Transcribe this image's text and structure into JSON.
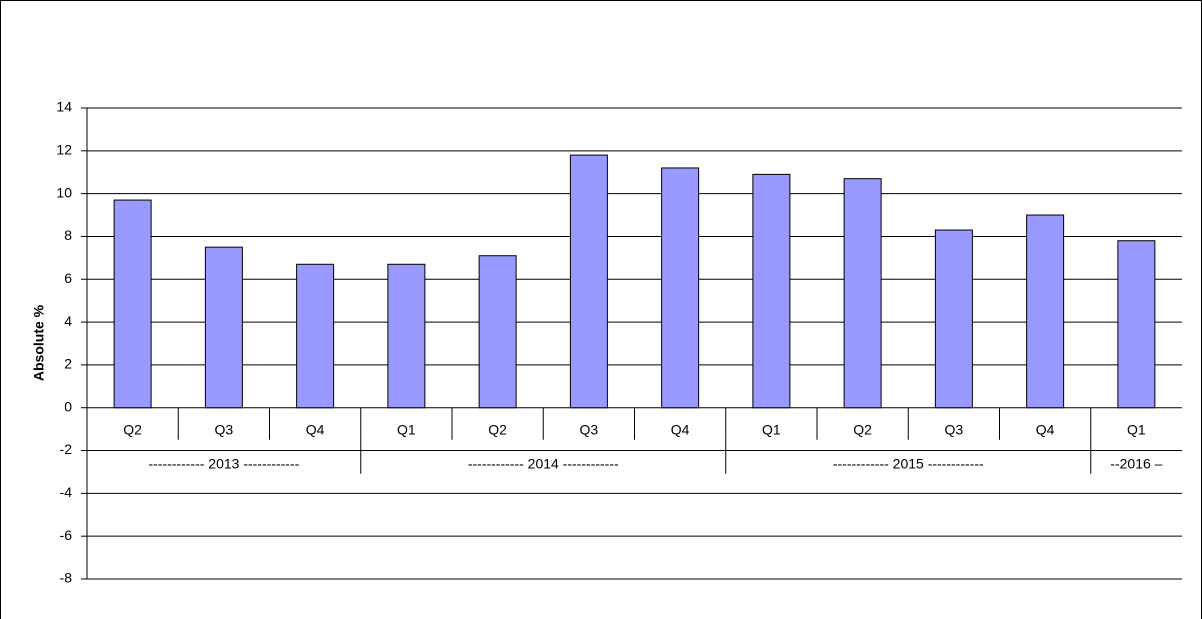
{
  "chart_data": {
    "type": "bar",
    "y_label": "Absolute %",
    "categories": [
      "Q2",
      "Q3",
      "Q4",
      "Q1",
      "Q2",
      "Q3",
      "Q4",
      "Q1",
      "Q2",
      "Q3",
      "Q4",
      "Q1"
    ],
    "values": [
      9.7,
      7.5,
      6.7,
      6.7,
      7.1,
      11.8,
      11.2,
      10.9,
      10.7,
      8.3,
      9.0,
      7.8
    ],
    "groups": [
      {
        "label": "------------ 2013 ------------",
        "count": 3
      },
      {
        "label": "------------ 2014 ------------",
        "count": 4
      },
      {
        "label": "------------ 2015 ------------",
        "count": 4
      },
      {
        "label": "--2016 –",
        "count": 1
      }
    ],
    "color": "#9999ff",
    "ylim": [
      -8,
      14
    ],
    "yticks": [
      -8,
      -6,
      -4,
      -2,
      0,
      2,
      4,
      6,
      8,
      10,
      12,
      14
    ],
    "grid": true
  }
}
